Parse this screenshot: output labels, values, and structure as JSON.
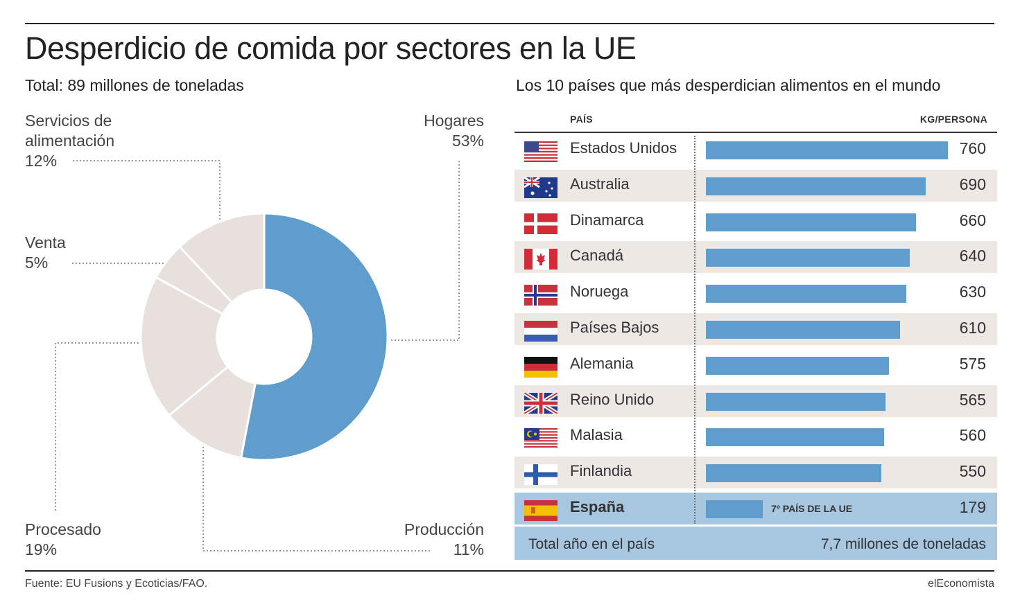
{
  "title": "Desperdicio de comida por sectores en la UE",
  "left_subtitle": "Total: 89 millones de toneladas",
  "right_subtitle": "Los 10 países que más desperdician alimentos en el mundo",
  "table_headers": {
    "country": "PAÍS",
    "value": "KG/PERSONA"
  },
  "spain_note": "7º PAÍS DE LA UE",
  "total_row": {
    "label": "Total año en el país",
    "value": "7,7 millones de toneladas"
  },
  "footer": {
    "source": "Fuente: EU Fusions y Ecoticias/FAO.",
    "brand": "elEconomista"
  },
  "colors": {
    "blue": "#5f9dcd",
    "beige": "#e8e0dc",
    "shade": "#eee8e5",
    "highlight": "#a7c6e0"
  },
  "chart_data": [
    {
      "type": "pie",
      "title": "Desperdicio de comida por sectores en la UE",
      "subtitle": "Total: 89 millones de toneladas",
      "slices": [
        {
          "name": "Hogares",
          "label": "53%",
          "value": 53,
          "color": "#5f9dcd"
        },
        {
          "name": "Producción",
          "label": "11%",
          "value": 11,
          "color": "#e8e0dc"
        },
        {
          "name": "Procesado",
          "label": "19%",
          "value": 19,
          "color": "#e8e0dc"
        },
        {
          "name": "Venta",
          "label": "5%",
          "value": 5,
          "color": "#e8e0dc"
        },
        {
          "name": "Servicios de alimentación",
          "label": "12%",
          "value": 12,
          "color": "#e8e0dc"
        }
      ]
    },
    {
      "type": "bar",
      "title": "Los 10 países que más desperdician alimentos en el mundo",
      "xlabel": "PAÍS",
      "ylabel": "KG/PERSONA",
      "categories": [
        "Estados Unidos",
        "Australia",
        "Dinamarca",
        "Canadá",
        "Noruega",
        "Países Bajos",
        "Alemania",
        "Reino Unido",
        "Malasia",
        "Finlandia",
        "España"
      ],
      "values": [
        760,
        690,
        660,
        640,
        630,
        610,
        575,
        565,
        560,
        550,
        179
      ],
      "flags": [
        "flag-usa-icon",
        "flag-australia-icon",
        "flag-denmark-icon",
        "flag-canada-icon",
        "flag-norway-icon",
        "flag-netherlands-icon",
        "flag-germany-icon",
        "flag-uk-icon",
        "flag-malaysia-icon",
        "flag-finland-icon",
        "flag-spain-icon"
      ]
    }
  ]
}
